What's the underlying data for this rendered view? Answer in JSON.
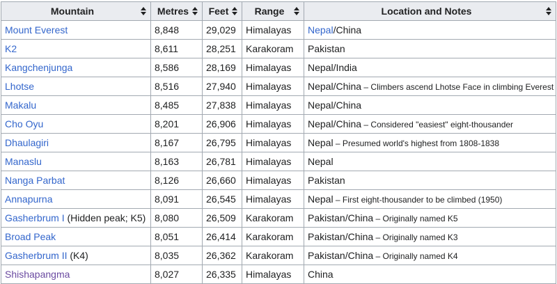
{
  "headers": {
    "mountain": "Mountain",
    "metres": "Metres",
    "feet": "Feet",
    "range": "Range",
    "location": "Location and Notes"
  },
  "rows": [
    {
      "name": "Mount Everest",
      "name_extra": "",
      "metres": "8,848",
      "feet": "29,029",
      "range": "Himalayas",
      "loc_link": "Nepal",
      "loc_text": "/China",
      "note": ""
    },
    {
      "name": "K2",
      "name_extra": "",
      "metres": "8,611",
      "feet": "28,251",
      "range": "Karakoram",
      "loc_link": "",
      "loc_text": "Pakistan",
      "note": ""
    },
    {
      "name": "Kangchenjunga",
      "name_extra": "",
      "metres": "8,586",
      "feet": "28,169",
      "range": "Himalayas",
      "loc_link": "",
      "loc_text": "Nepal/India",
      "note": ""
    },
    {
      "name": "Lhotse",
      "name_extra": "",
      "metres": "8,516",
      "feet": "27,940",
      "range": "Himalayas",
      "loc_link": "",
      "loc_text": "Nepal/China",
      "note": " – Climbers ascend Lhotse Face in climbing Everest"
    },
    {
      "name": "Makalu",
      "name_extra": "",
      "metres": "8,485",
      "feet": "27,838",
      "range": "Himalayas",
      "loc_link": "",
      "loc_text": "Nepal/China",
      "note": ""
    },
    {
      "name": "Cho Oyu",
      "name_extra": "",
      "metres": "8,201",
      "feet": "26,906",
      "range": "Himalayas",
      "loc_link": "",
      "loc_text": "Nepal/China",
      "note": " – Considered \"easiest\" eight-thousander"
    },
    {
      "name": "Dhaulagiri",
      "name_extra": "",
      "metres": "8,167",
      "feet": "26,795",
      "range": "Himalayas",
      "loc_link": "",
      "loc_text": "Nepal",
      "note": " – Presumed world's highest from 1808-1838"
    },
    {
      "name": "Manaslu",
      "name_extra": "",
      "metres": "8,163",
      "feet": "26,781",
      "range": "Himalayas",
      "loc_link": "",
      "loc_text": "Nepal",
      "note": ""
    },
    {
      "name": "Nanga Parbat",
      "name_extra": "",
      "metres": "8,126",
      "feet": "26,660",
      "range": "Himalayas",
      "loc_link": "",
      "loc_text": "Pakistan",
      "note": ""
    },
    {
      "name": "Annapurna",
      "name_extra": "",
      "metres": "8,091",
      "feet": "26,545",
      "range": "Himalayas",
      "loc_link": "",
      "loc_text": "Nepal",
      "note": " – First eight-thousander to be climbed (1950)"
    },
    {
      "name": "Gasherbrum I",
      "name_extra": " (Hidden peak; K5)",
      "metres": "8,080",
      "feet": "26,509",
      "range": "Karakoram",
      "loc_link": "",
      "loc_text": "Pakistan/China",
      "note": " – Originally named K5"
    },
    {
      "name": "Broad Peak",
      "name_extra": "",
      "metres": "8,051",
      "feet": "26,414",
      "range": "Karakoram",
      "loc_link": "",
      "loc_text": "Pakistan/China",
      "note": " – Originally named K3"
    },
    {
      "name": "Gasherbrum II",
      "name_extra": " (K4)",
      "metres": "8,035",
      "feet": "26,362",
      "range": "Karakoram",
      "loc_link": "",
      "loc_text": "Pakistan/China",
      "note": " – Originally named K4"
    },
    {
      "name": "Shishapangma",
      "name_extra": "",
      "metres": "8,027",
      "feet": "26,335",
      "range": "Himalayas",
      "loc_link": "",
      "loc_text": "China",
      "note": ""
    }
  ],
  "colors": {
    "link": "#3366cc",
    "visited": "#6b4ba1",
    "header_bg": "#eaecf0",
    "border": "#a2a9b1"
  }
}
